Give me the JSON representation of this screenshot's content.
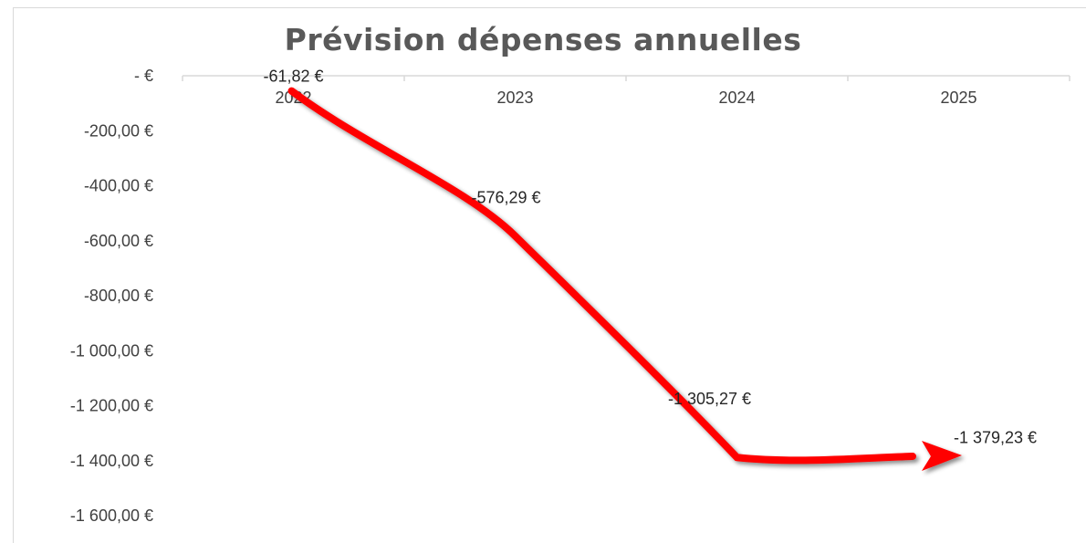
{
  "chart_data": {
    "type": "line",
    "title": "Prévision dépenses annuelles",
    "categories": [
      "2022",
      "2023",
      "2024",
      "2025"
    ],
    "series": [
      {
        "values": [
          -61.82,
          -576.29,
          -1305.27,
          -1379.23
        ],
        "labels": [
          "-61,82 €",
          "-576,29 €",
          "-1 305,27 €",
          "-1 379,23 €"
        ]
      }
    ],
    "ylim": [
      -1600,
      0
    ],
    "yticks": [
      0,
      -200,
      -400,
      -600,
      -800,
      -1000,
      -1200,
      -1400,
      -1600
    ],
    "ytick_labels": [
      "-   €",
      "-200,00 €",
      "-400,00 €",
      "-600,00 €",
      "-800,00 €",
      "-1 000,00 €",
      "-1 200,00 €",
      "-1 400,00 €",
      "-1 600,00 €"
    ],
    "xaxis_position": "top",
    "grid": false,
    "legend": "none",
    "line_color": "#ff0000",
    "arrow_end": true
  }
}
